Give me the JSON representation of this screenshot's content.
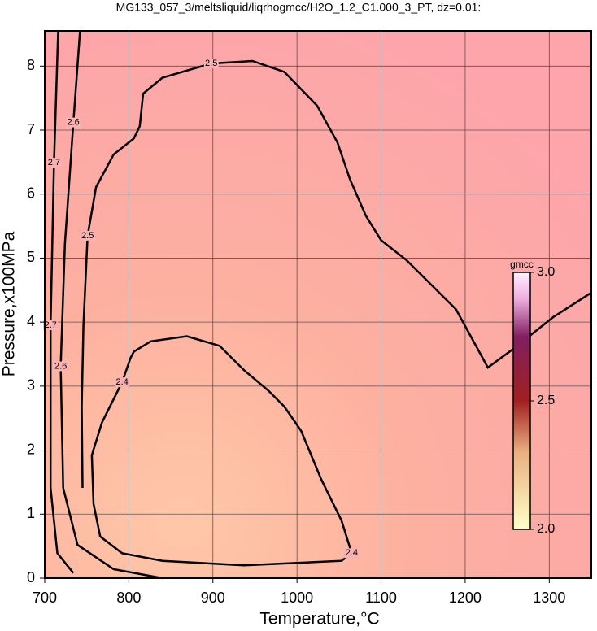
{
  "chart_data": {
    "type": "contour",
    "title": "MG133_057_3/meltsliquid/liqrhogmcc/H2O_1.2_C1.000_3_PT, dz=0.01:",
    "x_label": "Temperature,°C",
    "y_label": "Pressure,x100MPa",
    "xlim": [
      700,
      1350
    ],
    "ylim": [
      0,
      8.55
    ],
    "xticks": [
      700,
      800,
      900,
      1000,
      1100,
      1200,
      1300
    ],
    "yticks": [
      0,
      1,
      2,
      3,
      4,
      5,
      6,
      7,
      8
    ],
    "grid": true,
    "contours": [
      {
        "level": 2.4,
        "x": [
          766,
          758,
          756,
          768,
          792,
          802,
          806,
          826,
          869,
          908,
          937,
          966,
          985,
          1005,
          1029,
          1053,
          1065,
          1053,
          937,
          840,
          792,
          766
        ],
        "y": [
          0.65,
          1.16,
          1.92,
          2.43,
          3.06,
          3.44,
          3.54,
          3.7,
          3.78,
          3.63,
          3.25,
          2.93,
          2.68,
          2.3,
          1.54,
          0.9,
          0.39,
          0.27,
          0.2,
          0.27,
          0.39,
          0.65
        ]
      },
      {
        "level": 2.5,
        "x": [
          745,
          744,
          746,
          751,
          761,
          782,
          806,
          813,
          817,
          840,
          898,
          947,
          985,
          1024,
          1048,
          1063,
          1082,
          1100,
          1130,
          1189,
          1227,
          1256,
          1305,
          1350
        ],
        "y": [
          1.41,
          2.68,
          3.95,
          5.35,
          6.11,
          6.62,
          6.87,
          7.06,
          7.57,
          7.82,
          8.04,
          8.08,
          7.91,
          7.38,
          6.81,
          6.23,
          5.66,
          5.28,
          4.97,
          4.2,
          3.29,
          3.57,
          4.08,
          4.46
        ]
      },
      {
        "level": 2.6,
        "x": [
          742,
          734,
          724,
          719,
          722,
          739,
          782,
          840
        ],
        "y": [
          8.55,
          7.12,
          5.22,
          3.31,
          1.41,
          0.52,
          0.14,
          0
        ]
      },
      {
        "level": 2.7,
        "x": [
          716,
          711,
          707,
          707,
          715,
          734
        ],
        "y": [
          8.55,
          6.49,
          3.95,
          1.41,
          0.39,
          0.08
        ]
      }
    ],
    "colorbar": {
      "label": "gmcc",
      "lim": [
        2.0,
        3.0
      ],
      "ticks": [
        {
          "value": 2,
          "label": "2.0"
        },
        2.5,
        {
          "value": 3,
          "label": "3.0"
        }
      ]
    }
  }
}
